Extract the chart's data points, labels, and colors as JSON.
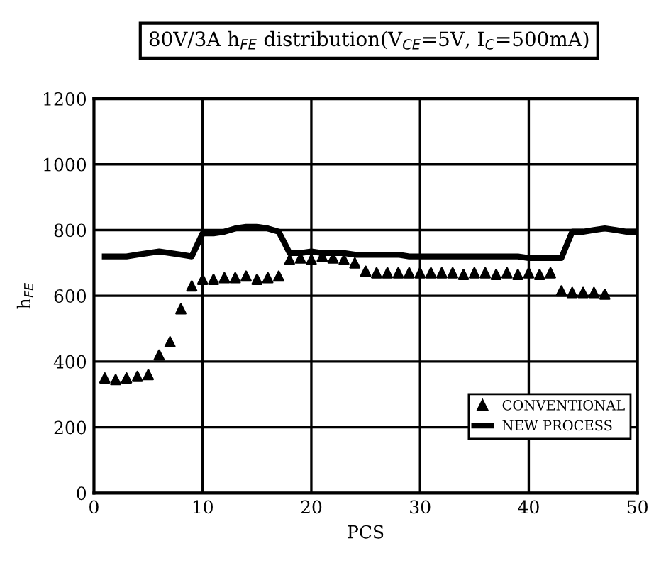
{
  "chart_data": {
    "type": "scatter",
    "title": "80V/3A h$_{FE}$ distribution(V$_{CE}$=5V, I$_{C}$=500mA)",
    "xlabel": "PCS",
    "ylabel": "h$_{FE}$",
    "xlim": [
      0,
      50
    ],
    "ylim": [
      0,
      1200
    ],
    "xticks": [
      0,
      10,
      20,
      30,
      40,
      50
    ],
    "yticks": [
      0,
      200,
      400,
      600,
      800,
      1000,
      1200
    ],
    "grid": true,
    "legend": "bottom right",
    "series": [
      {
        "name": "CONVENTIONAL",
        "marker": "triangle",
        "color": "#000000",
        "x": [
          1,
          2,
          3,
          4,
          5,
          6,
          7,
          8,
          9,
          10,
          11,
          12,
          13,
          14,
          15,
          16,
          17,
          18,
          19,
          20,
          21,
          22,
          23,
          24,
          25,
          26,
          27,
          28,
          29,
          30,
          31,
          32,
          33,
          34,
          35,
          36,
          37,
          38,
          39,
          40,
          41,
          42,
          43,
          44,
          45,
          46,
          47
        ],
        "values": [
          350,
          345,
          350,
          355,
          360,
          420,
          460,
          560,
          630,
          650,
          650,
          655,
          655,
          660,
          650,
          655,
          660,
          710,
          715,
          710,
          720,
          715,
          710,
          700,
          675,
          670,
          670,
          670,
          670,
          670,
          670,
          670,
          670,
          665,
          670,
          670,
          665,
          670,
          665,
          670,
          665,
          670,
          615,
          610,
          610,
          610,
          605
        ]
      },
      {
        "name": "NEW PROCESS",
        "type": "line",
        "marker": "none",
        "color": "#000000",
        "x": [
          1,
          2,
          3,
          4,
          5,
          6,
          7,
          8,
          9,
          10,
          11,
          12,
          13,
          14,
          15,
          16,
          17,
          18,
          19,
          20,
          21,
          22,
          23,
          24,
          25,
          26,
          27,
          28,
          29,
          30,
          31,
          32,
          33,
          34,
          35,
          36,
          37,
          38,
          39,
          40,
          41,
          42,
          43,
          44,
          45,
          46,
          47,
          48,
          49,
          50
        ],
        "values": [
          720,
          720,
          720,
          725,
          730,
          735,
          730,
          725,
          720,
          790,
          790,
          795,
          805,
          810,
          810,
          805,
          795,
          730,
          730,
          735,
          730,
          730,
          730,
          725,
          725,
          725,
          725,
          725,
          720,
          720,
          720,
          720,
          720,
          720,
          720,
          720,
          720,
          720,
          720,
          715,
          715,
          715,
          715,
          795,
          795,
          800,
          805,
          800,
          795,
          795
        ]
      }
    ]
  }
}
